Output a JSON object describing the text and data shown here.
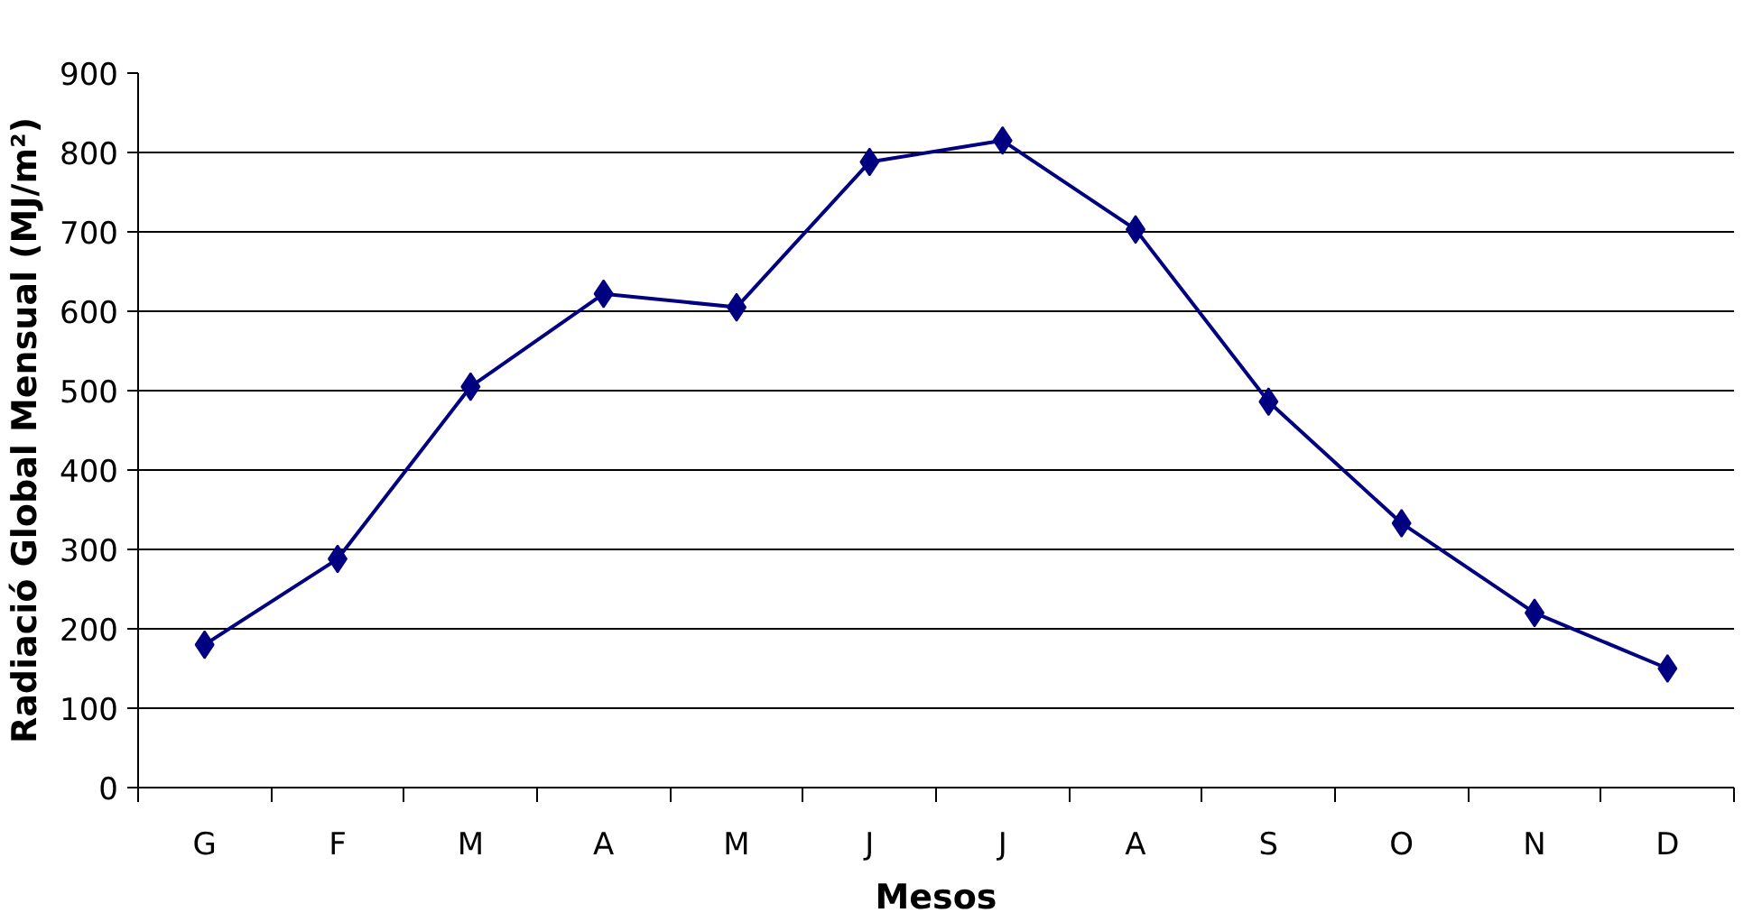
{
  "chart_data": {
    "type": "line",
    "xlabel": "Mesos",
    "ylabel": "Radiació Global Mensual (MJ/m²)",
    "categories": [
      "G",
      "F",
      "M",
      "A",
      "M",
      "J",
      "J",
      "A",
      "S",
      "O",
      "N",
      "D"
    ],
    "series": [
      {
        "color": "#000080",
        "values": [
          180,
          288,
          505,
          622,
          605,
          788,
          815,
          703,
          486,
          333,
          220,
          150
        ]
      }
    ],
    "ylim": [
      0,
      900
    ],
    "yticks": [
      0,
      100,
      200,
      300,
      400,
      500,
      600,
      700,
      800,
      900
    ],
    "grid": "y",
    "marker": "diamond",
    "line_style": "solid"
  }
}
